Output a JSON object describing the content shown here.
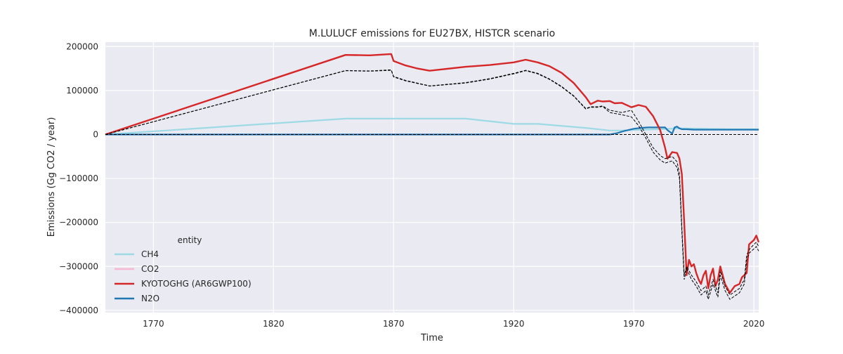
{
  "chart_data": {
    "type": "line",
    "title": "M.LULUCF emissions for EU27BX, HISTCR scenario",
    "xlabel": "Time",
    "ylabel": "Emissions (Gg CO2 / year)",
    "xlim": [
      1750,
      2022
    ],
    "ylim": [
      -405000,
      210000
    ],
    "xticks": [
      1770,
      1820,
      1870,
      1920,
      1970,
      2020
    ],
    "yticks": [
      -400000,
      -300000,
      -200000,
      -100000,
      0,
      100000,
      200000
    ],
    "ytick_labels": [
      "−400000",
      "−300000",
      "−200000",
      "−100000",
      "0",
      "100000",
      "200000"
    ],
    "grid": true,
    "legend": {
      "title": "entity",
      "placement": "lower-left"
    },
    "series": [
      {
        "name": "CH4",
        "color": "#9edae5",
        "x": [
          1750,
          1850,
          1900,
          1920,
          1930,
          1950,
          1960,
          1965,
          1970,
          1980,
          1990,
          2000,
          2010,
          2022
        ],
        "y": [
          0,
          36000,
          36000,
          24000,
          24000,
          15000,
          9000,
          9000,
          10000,
          12000,
          14000,
          13000,
          12000,
          12000
        ]
      },
      {
        "name": "CO2",
        "color": "#f7b6d2",
        "x": [
          1750,
          2022
        ],
        "y": [
          0,
          0
        ],
        "visible_in_legend_only": true
      },
      {
        "name": "KYOTOGHG (AR6GWP100)",
        "color": "#d62728",
        "x": [
          1750,
          1850,
          1860,
          1869,
          1870,
          1875,
          1880,
          1885,
          1890,
          1900,
          1910,
          1920,
          1925,
          1930,
          1935,
          1940,
          1945,
          1950,
          1952,
          1955,
          1957,
          1960,
          1962,
          1965,
          1969,
          1972,
          1975,
          1978,
          1981,
          1983,
          1984,
          1986,
          1988,
          1989,
          1990,
          1991,
          1992,
          1993,
          1994,
          1995,
          1996,
          1997,
          1998,
          1999,
          2000,
          2001,
          2002,
          2003,
          2004,
          2005,
          2006,
          2008,
          2010,
          2012,
          2014,
          2015,
          2016,
          2017,
          2018,
          2019,
          2020,
          2021,
          2022
        ],
        "y": [
          0,
          181000,
          180000,
          183000,
          167000,
          157000,
          150000,
          145000,
          148000,
          154000,
          158000,
          164000,
          170000,
          164000,
          155000,
          140000,
          117000,
          85000,
          69000,
          77000,
          75000,
          76000,
          71000,
          72000,
          62000,
          67000,
          63000,
          42000,
          10000,
          -30000,
          -55000,
          -40000,
          -42000,
          -55000,
          -90000,
          -200000,
          -320000,
          -285000,
          -300000,
          -295000,
          -315000,
          -330000,
          -340000,
          -320000,
          -310000,
          -350000,
          -320000,
          -305000,
          -345000,
          -330000,
          -300000,
          -340000,
          -360000,
          -345000,
          -340000,
          -325000,
          -320000,
          -315000,
          -250000,
          -245000,
          -240000,
          -230000,
          -245000
        ]
      },
      {
        "name": "N2O",
        "color": "#1f77b4",
        "x": [
          1750,
          1960,
          1963,
          1966,
          1970,
          1973,
          1976,
          1979,
          1981,
          1983,
          1984,
          1985,
          1986,
          1987,
          1988,
          1989,
          1990,
          1992,
          1995,
          2000,
          2005,
          2010,
          2015,
          2020,
          2022
        ],
        "y": [
          0,
          0,
          3000,
          8000,
          13000,
          15000,
          16000,
          16000,
          16000,
          16000,
          10000,
          6000,
          2000,
          16000,
          18000,
          14000,
          12000,
          12000,
          11000,
          11000,
          11000,
          11000,
          11000,
          11000,
          11000
        ]
      }
    ],
    "reference_lines": [
      {
        "style": "dashed",
        "color": "#000000",
        "x": [
          1750,
          1850,
          1860,
          1869,
          1870,
          1875,
          1885,
          1900,
          1910,
          1920,
          1925,
          1930,
          1935,
          1940,
          1945,
          1950,
          1952,
          1955,
          1957,
          1960,
          1965,
          1969,
          1972,
          1975,
          1978,
          1981,
          1983,
          1986,
          1988,
          1989,
          1990,
          1991,
          1992,
          1994,
          1996,
          1998,
          2000,
          2001,
          2003,
          2005,
          2006,
          2008,
          2010,
          2014,
          2016,
          2017,
          2018,
          2020,
          2021,
          2022
        ],
        "y": [
          0,
          145000,
          144000,
          146000,
          131000,
          122000,
          110000,
          117000,
          126000,
          138000,
          145000,
          138000,
          125000,
          108000,
          87000,
          58000,
          62000,
          62000,
          64000,
          50000,
          45000,
          40000,
          20000,
          -8000,
          -40000,
          -58000,
          -65000,
          -60000,
          -75000,
          -100000,
          -220000,
          -330000,
          -305000,
          -330000,
          -345000,
          -365000,
          -355000,
          -375000,
          -340000,
          -370000,
          -320000,
          -355000,
          -375000,
          -360000,
          -340000,
          -285000,
          -270000,
          -260000,
          -255000,
          -265000
        ]
      },
      {
        "style": "dashed",
        "color": "#000000",
        "x": [
          1750,
          1850,
          1860,
          1869,
          1870,
          1875,
          1885,
          1900,
          1910,
          1920,
          1925,
          1930,
          1935,
          1940,
          1945,
          1950,
          1952,
          1955,
          1957,
          1960,
          1965,
          1969,
          1972,
          1975,
          1978,
          1981,
          1983,
          1986,
          1988,
          1989,
          1990,
          1991,
          1992,
          1994,
          1996,
          1998,
          2000,
          2001,
          2003,
          2005,
          2006,
          2008,
          2010,
          2014,
          2016,
          2017,
          2018,
          2020,
          2021,
          2022
        ],
        "y": [
          0,
          145500,
          144500,
          147000,
          132000,
          123000,
          110500,
          118000,
          127000,
          139000,
          146000,
          139000,
          126000,
          109000,
          88000,
          59000,
          63000,
          63000,
          65000,
          55000,
          50000,
          55000,
          30000,
          0,
          -30000,
          -48000,
          -55000,
          -50000,
          -62000,
          -90000,
          -210000,
          -320000,
          -300000,
          -320000,
          -335000,
          -355000,
          -345000,
          -365000,
          -330000,
          -360000,
          -310000,
          -345000,
          -365000,
          -350000,
          -330000,
          -275000,
          -262000,
          -250000,
          -245000,
          -255000
        ]
      },
      {
        "style": "dashed",
        "color": "#000000",
        "x": [
          1750,
          2022
        ],
        "y": [
          0,
          0
        ]
      }
    ]
  }
}
